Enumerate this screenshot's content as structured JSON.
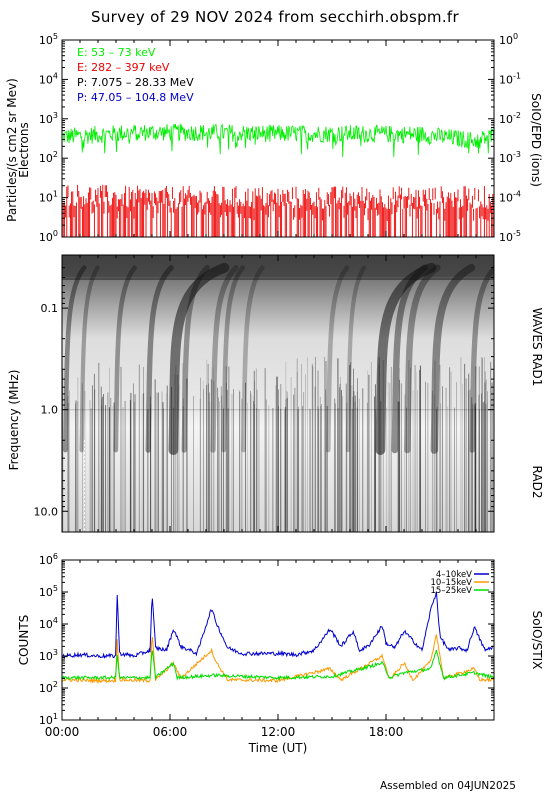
{
  "title": "Survey of 29 NOV 2024 from secchirh.obspm.fr",
  "footer": "Assembled on 04JUN2025",
  "panels": {
    "epd": {
      "ylabel_left_1": "Particles/(s cm2 sr Mev)",
      "ylabel_left_2": "Electrons",
      "ylabel_right": "SoIO/EPD (ions)",
      "left_ticks": [
        {
          "base": "10",
          "exp": "0"
        },
        {
          "base": "10",
          "exp": "1"
        },
        {
          "base": "10",
          "exp": "2"
        },
        {
          "base": "10",
          "exp": "3"
        },
        {
          "base": "10",
          "exp": "4"
        },
        {
          "base": "10",
          "exp": "5"
        }
      ],
      "right_ticks": [
        {
          "base": "10",
          "exp": "-5"
        },
        {
          "base": "10",
          "exp": "-4"
        },
        {
          "base": "10",
          "exp": "-3"
        },
        {
          "base": "10",
          "exp": "-2"
        },
        {
          "base": "10",
          "exp": "-1"
        },
        {
          "base": "10",
          "exp": "0"
        }
      ],
      "legend": [
        {
          "text": "E: 53 – 73 keV",
          "color": "#00ee00"
        },
        {
          "text": "E: 282 – 397 keV",
          "color": "#ee0000"
        },
        {
          "text": "P: 7.075 – 28.33 MeV",
          "color": "#000000"
        },
        {
          "text": "P: 47.05 – 104.8 MeV",
          "color": "#0000cc"
        }
      ]
    },
    "waves": {
      "ylabel": "Frequency (MHz)",
      "right_label_1": "WAVES RAD1",
      "right_label_2": "RAD2",
      "ticks": [
        "0.1",
        "1.0",
        "10.0"
      ]
    },
    "stix": {
      "ylabel": "COUNTS",
      "right_label": "SoIO/STIX",
      "ticks": [
        {
          "base": "10",
          "exp": "1"
        },
        {
          "base": "10",
          "exp": "2"
        },
        {
          "base": "10",
          "exp": "3"
        },
        {
          "base": "10",
          "exp": "4"
        },
        {
          "base": "10",
          "exp": "5"
        },
        {
          "base": "10",
          "exp": "6"
        }
      ],
      "legend": [
        {
          "text": "4–10keV",
          "color": "#0000cc"
        },
        {
          "text": "10–15keV",
          "color": "#ff9900"
        },
        {
          "text": "15–25keV",
          "color": "#00dd00"
        }
      ]
    }
  },
  "xaxis": {
    "ticks": [
      "00:00",
      "06:00",
      "12:00",
      "18:00"
    ],
    "label": "Time (UT)"
  },
  "chart_data": [
    {
      "type": "line",
      "panel": "SoIO/EPD",
      "yscale": "log",
      "ylim": [
        1,
        100000
      ],
      "xlim_hours": [
        0,
        24
      ],
      "series": [
        {
          "name": "E: 53 – 73 keV",
          "color": "#00ee00",
          "approx_level": 400,
          "x_hours": [
            0,
            4,
            8,
            12,
            16,
            20,
            23,
            24
          ],
          "y": [
            350,
            450,
            450,
            420,
            420,
            400,
            280,
            380
          ]
        },
        {
          "name": "E: 282 – 397 keV",
          "color": "#ee0000",
          "approx_level": 10,
          "x_hours": [
            0,
            4,
            8,
            12,
            16,
            20,
            24
          ],
          "y": [
            12,
            10,
            10,
            10,
            10,
            10,
            10
          ]
        }
      ]
    },
    {
      "type": "heatmap",
      "panel": "WAVES RAD1 / RAD2",
      "yscale": "log",
      "ylim_mhz": [
        0.03,
        16
      ],
      "xlim_hours": [
        0,
        24
      ]
    },
    {
      "type": "line",
      "panel": "SoIO/STIX",
      "yscale": "log",
      "ylim": [
        10,
        1000000
      ],
      "xlim_hours": [
        0,
        24
      ],
      "series": [
        {
          "name": "4–10keV",
          "color": "#0000cc",
          "x_hours": [
            0,
            1,
            2,
            3.0,
            3.05,
            3.2,
            4,
            4.9,
            5.0,
            5.2,
            5.8,
            6.2,
            6.6,
            7.5,
            8.3,
            8.6,
            9.2,
            10,
            11,
            12,
            13,
            14,
            14.9,
            15.5,
            16.2,
            16.5,
            17,
            17.8,
            18,
            18.5,
            19.0,
            19.5,
            20,
            20.5,
            20.8,
            21.0,
            21.5,
            22,
            22.5,
            22.9,
            23.5,
            24
          ],
          "y": [
            1000,
            1100,
            1000,
            1000,
            150000,
            1200,
            1000,
            1500,
            90000,
            1800,
            1500,
            7000,
            2000,
            1200,
            30000,
            10000,
            1800,
            1200,
            1200,
            1200,
            1100,
            1500,
            7000,
            2000,
            6000,
            1500,
            2000,
            9000,
            2500,
            1800,
            6000,
            3000,
            1500,
            30000,
            100000,
            4000,
            1500,
            1800,
            1500,
            8000,
            1500,
            2000
          ]
        },
        {
          "name": "10–15keV",
          "color": "#ff9900",
          "x_hours": [
            0,
            2,
            3.0,
            3.05,
            3.2,
            4.9,
            5.0,
            5.2,
            6.2,
            6.6,
            8.3,
            8.6,
            9.2,
            12,
            14.9,
            15.5,
            17.8,
            18.2,
            19.0,
            19.5,
            20.5,
            20.8,
            21.2,
            22.9,
            23.2,
            24
          ],
          "y": [
            180,
            170,
            170,
            5000,
            180,
            170,
            6000,
            180,
            600,
            200,
            1500,
            600,
            180,
            170,
            400,
            180,
            1000,
            180,
            600,
            180,
            700,
            5000,
            200,
            400,
            180,
            180
          ]
        },
        {
          "name": "15–25keV",
          "color": "#00dd00",
          "x_hours": [
            0,
            2,
            3.0,
            3.05,
            3.2,
            4.9,
            5.0,
            5.2,
            6.2,
            6.4,
            8.5,
            12,
            15,
            17.8,
            18.2,
            19.0,
            20.5,
            20.8,
            21.2,
            22.9,
            24
          ],
          "y": [
            210,
            210,
            210,
            1500,
            210,
            210,
            1800,
            210,
            600,
            210,
            250,
            210,
            230,
            600,
            210,
            300,
            400,
            1500,
            210,
            300,
            210
          ]
        }
      ]
    }
  ]
}
